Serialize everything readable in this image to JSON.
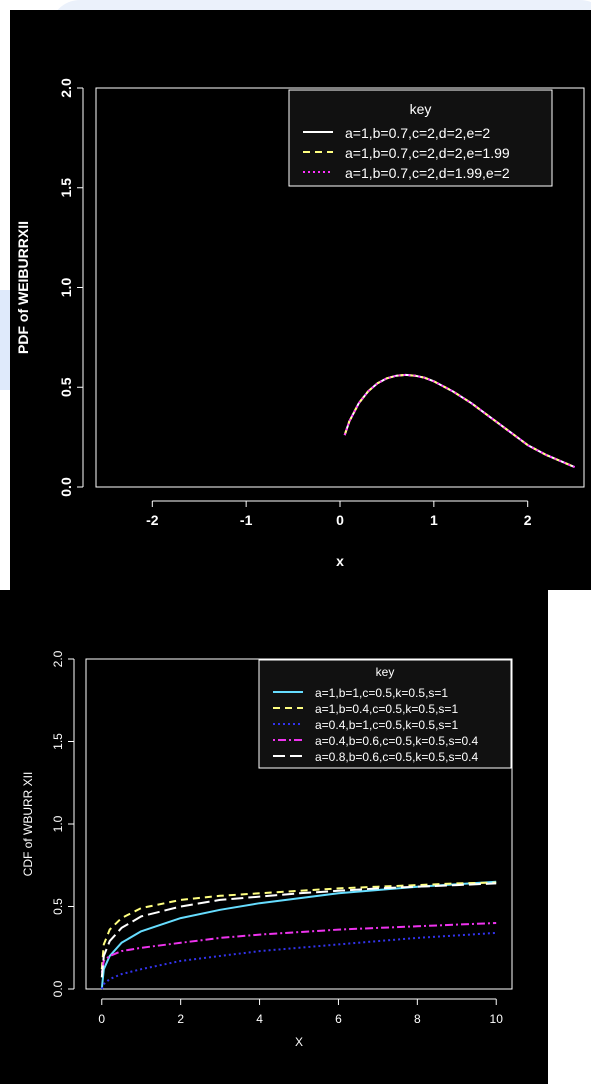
{
  "chart_data": [
    {
      "type": "line",
      "xlabel": "x",
      "ylabel": "PDF of WEIBURRXII",
      "xlim": [
        -2.6,
        2.6
      ],
      "ylim": [
        0,
        2
      ],
      "xticks": [
        "-2",
        "-1",
        "0",
        "1",
        "2"
      ],
      "yticks": [
        "0.0",
        "0.5",
        "1.0",
        "1.5",
        "2.0"
      ],
      "legend_title": "key",
      "legend_position": "top-right",
      "grid": false,
      "series": [
        {
          "name": "a=1,b=0.7,c=2,d=2,e=2",
          "color": "#ffffff",
          "dash": "solid",
          "x": [
            0.05,
            0.1,
            0.2,
            0.3,
            0.4,
            0.5,
            0.6,
            0.7,
            0.8,
            0.9,
            1.0,
            1.2,
            1.4,
            1.6,
            1.8,
            2.0,
            2.2,
            2.5
          ],
          "y": [
            0.26,
            0.33,
            0.42,
            0.48,
            0.52,
            0.545,
            0.558,
            0.562,
            0.558,
            0.548,
            0.53,
            0.48,
            0.42,
            0.35,
            0.28,
            0.21,
            0.16,
            0.1
          ]
        },
        {
          "name": "a=1,b=0.7,c=2,d=2,e=1.99",
          "color": "#ffff80",
          "dash": "dashed",
          "x": [
            0.05,
            0.1,
            0.2,
            0.3,
            0.4,
            0.5,
            0.6,
            0.7,
            0.8,
            0.9,
            1.0,
            1.2,
            1.4,
            1.6,
            1.8,
            2.0,
            2.2,
            2.5
          ],
          "y": [
            0.26,
            0.33,
            0.42,
            0.48,
            0.52,
            0.545,
            0.558,
            0.562,
            0.558,
            0.548,
            0.53,
            0.48,
            0.42,
            0.35,
            0.28,
            0.21,
            0.16,
            0.1
          ]
        },
        {
          "name": "a=1,b=0.7,c=2,d=1.99,e=2",
          "color": "#ff33ff",
          "dash": "dotted",
          "x": [
            0.05,
            0.1,
            0.2,
            0.3,
            0.4,
            0.5,
            0.6,
            0.7,
            0.8,
            0.9,
            1.0,
            1.2,
            1.4,
            1.6,
            1.8,
            2.0,
            2.2,
            2.5
          ],
          "y": [
            0.26,
            0.33,
            0.42,
            0.48,
            0.52,
            0.545,
            0.558,
            0.562,
            0.558,
            0.548,
            0.53,
            0.48,
            0.42,
            0.35,
            0.28,
            0.21,
            0.16,
            0.1
          ]
        }
      ]
    },
    {
      "type": "line",
      "xlabel": "X",
      "ylabel": "CDF of WBURR XII",
      "xlim": [
        -0.4,
        10.4
      ],
      "ylim": [
        0,
        2
      ],
      "xticks": [
        "0",
        "2",
        "4",
        "6",
        "8",
        "10"
      ],
      "yticks": [
        "0.0",
        "0.5",
        "1.0",
        "1.5",
        "2.0"
      ],
      "legend_title": "key",
      "legend_position": "top-right",
      "grid": false,
      "series": [
        {
          "name": "a=1,b=1,c=0.5,k=0.5,s=1",
          "color": "#66ddff",
          "dash": "solid",
          "x": [
            0,
            0.05,
            0.2,
            0.5,
            1,
            2,
            3,
            4,
            5,
            6,
            7,
            8,
            9,
            10
          ],
          "y": [
            0.0,
            0.12,
            0.2,
            0.28,
            0.35,
            0.43,
            0.48,
            0.52,
            0.55,
            0.58,
            0.6,
            0.62,
            0.635,
            0.65
          ]
        },
        {
          "name": "a=1,b=0.4,c=0.5,k=0.5,s=1",
          "color": "#ffff80",
          "dash": "dashed",
          "x": [
            0,
            0.05,
            0.2,
            0.5,
            1,
            2,
            3,
            4,
            5,
            6,
            7,
            8,
            9,
            10
          ],
          "y": [
            0.12,
            0.27,
            0.36,
            0.43,
            0.49,
            0.54,
            0.565,
            0.58,
            0.595,
            0.61,
            0.62,
            0.63,
            0.64,
            0.645
          ]
        },
        {
          "name": "a=0.4,b=1,c=0.5,k=0.5,s=1",
          "color": "#3333ee",
          "dash": "dotted",
          "x": [
            0,
            0.05,
            0.2,
            0.5,
            1,
            2,
            3,
            4,
            5,
            6,
            7,
            8,
            9,
            10
          ],
          "y": [
            0.0,
            0.03,
            0.06,
            0.09,
            0.12,
            0.17,
            0.2,
            0.23,
            0.25,
            0.27,
            0.29,
            0.31,
            0.325,
            0.34
          ]
        },
        {
          "name": "a=0.4,b=0.6,c=0.5,k=0.5,s=0.4",
          "color": "#ee33ee",
          "dash": "dotdash",
          "x": [
            0,
            0.05,
            0.2,
            0.5,
            1,
            2,
            3,
            4,
            5,
            6,
            7,
            8,
            9,
            10
          ],
          "y": [
            0.1,
            0.17,
            0.2,
            0.23,
            0.25,
            0.28,
            0.31,
            0.33,
            0.345,
            0.36,
            0.37,
            0.38,
            0.39,
            0.4
          ]
        },
        {
          "name": "a=0.8,b=0.6,c=0.5,k=0.5,s=0.4",
          "color": "#ffffff",
          "dash": "longdash",
          "x": [
            0,
            0.05,
            0.2,
            0.5,
            1,
            2,
            3,
            4,
            5,
            6,
            7,
            8,
            9,
            10
          ],
          "y": [
            0.07,
            0.2,
            0.29,
            0.37,
            0.44,
            0.5,
            0.54,
            0.56,
            0.58,
            0.595,
            0.61,
            0.62,
            0.63,
            0.64
          ]
        }
      ]
    }
  ]
}
